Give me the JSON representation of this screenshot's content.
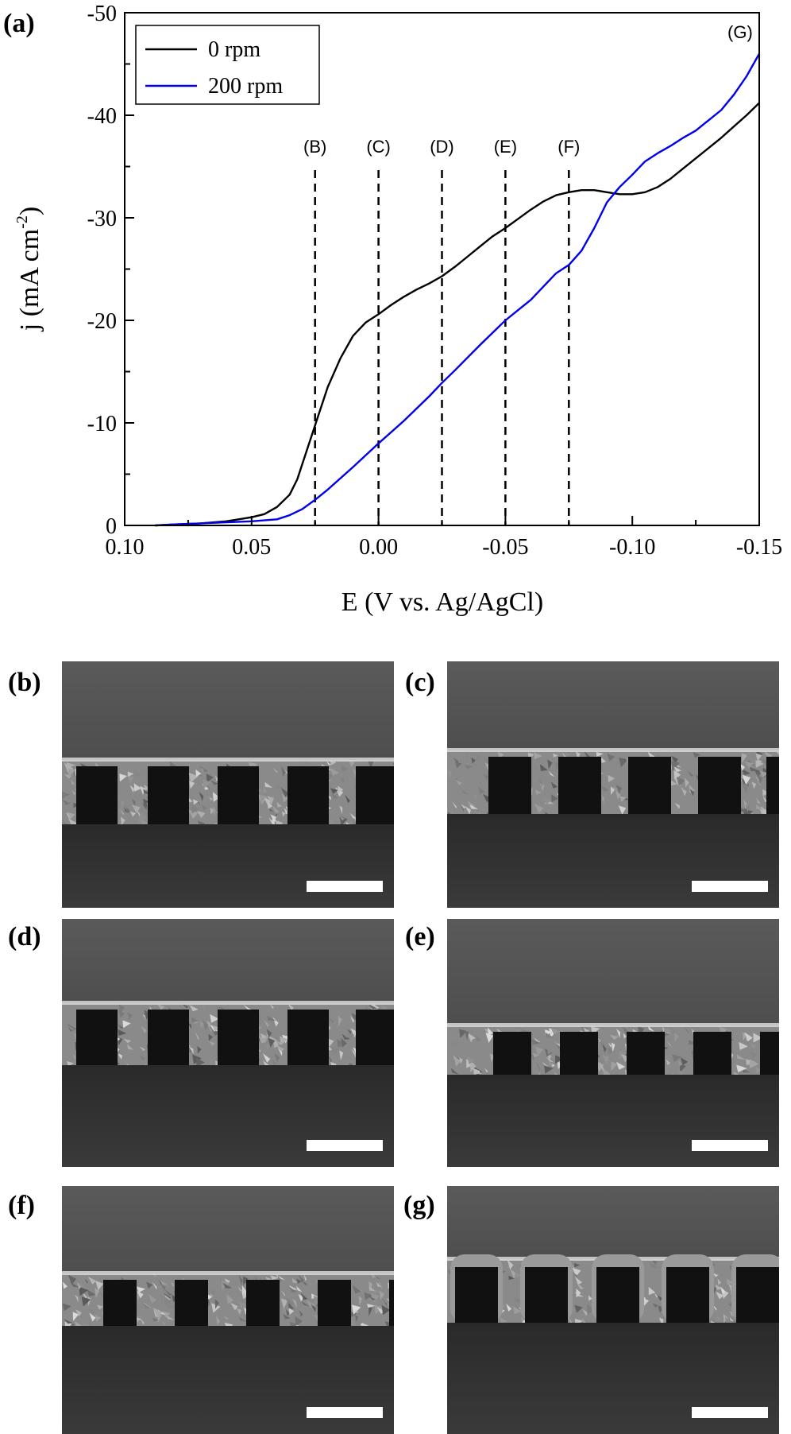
{
  "chart_data": {
    "type": "line",
    "panel_label": "(a)",
    "xlabel": "E (V vs. Ag/AgCl)",
    "ylabel_main": "j (mA cm",
    "ylabel_sup": "-2",
    "ylabel_close": ")",
    "xlim": [
      0.1,
      -0.15
    ],
    "ylim": [
      0,
      -50
    ],
    "x_ticks": [
      0.1,
      0.05,
      0.0,
      -0.05,
      -0.1,
      -0.15
    ],
    "x_tick_labels": [
      "0.10",
      "0.05",
      "0.00",
      "-0.05",
      "-0.10",
      "-0.15"
    ],
    "y_ticks": [
      0,
      -10,
      -20,
      -30,
      -40,
      -50
    ],
    "y_tick_labels": [
      "0",
      "-10",
      "-20",
      "-30",
      "-40",
      "-50"
    ],
    "legend_position": "top-left",
    "series": [
      {
        "name": "0 rpm",
        "color": "#000000",
        "x": [
          0.088,
          0.08,
          0.07,
          0.06,
          0.05,
          0.045,
          0.04,
          0.035,
          0.032,
          0.03,
          0.028,
          0.026,
          0.024,
          0.022,
          0.02,
          0.015,
          0.01,
          0.005,
          0.0,
          -0.005,
          -0.01,
          -0.015,
          -0.02,
          -0.025,
          -0.03,
          -0.035,
          -0.04,
          -0.045,
          -0.05,
          -0.055,
          -0.06,
          -0.065,
          -0.07,
          -0.075,
          -0.08,
          -0.085,
          -0.09,
          -0.095,
          -0.1,
          -0.105,
          -0.11,
          -0.115,
          -0.12,
          -0.125,
          -0.13,
          -0.135,
          -0.14,
          -0.145,
          -0.15
        ],
        "y": [
          0,
          -0.1,
          -0.2,
          -0.4,
          -0.8,
          -1.1,
          -1.8,
          -3.0,
          -4.5,
          -6.0,
          -7.5,
          -9.0,
          -10.5,
          -12.0,
          -13.5,
          -16.3,
          -18.5,
          -19.8,
          -20.6,
          -21.5,
          -22.3,
          -23.0,
          -23.6,
          -24.3,
          -25.2,
          -26.2,
          -27.2,
          -28.2,
          -29.0,
          -29.9,
          -30.8,
          -31.6,
          -32.2,
          -32.5,
          -32.7,
          -32.7,
          -32.5,
          -32.3,
          -32.3,
          -32.5,
          -33.0,
          -33.8,
          -34.8,
          -35.8,
          -36.8,
          -37.8,
          -38.9,
          -40.0,
          -41.2
        ]
      },
      {
        "name": "200 rpm",
        "color": "#0000ee",
        "x": [
          0.088,
          0.08,
          0.07,
          0.06,
          0.05,
          0.04,
          0.035,
          0.03,
          0.025,
          0.02,
          0.01,
          0.0,
          -0.01,
          -0.02,
          -0.025,
          -0.03,
          -0.04,
          -0.045,
          -0.05,
          -0.055,
          -0.06,
          -0.065,
          -0.07,
          -0.075,
          -0.08,
          -0.085,
          -0.09,
          -0.095,
          -0.1,
          -0.105,
          -0.11,
          -0.115,
          -0.12,
          -0.125,
          -0.13,
          -0.135,
          -0.14,
          -0.145,
          -0.15
        ],
        "y": [
          0,
          -0.1,
          -0.2,
          -0.3,
          -0.4,
          -0.6,
          -1.0,
          -1.6,
          -2.5,
          -3.5,
          -5.7,
          -8.0,
          -10.2,
          -12.6,
          -13.9,
          -15.1,
          -17.6,
          -18.8,
          -20.0,
          -21.0,
          -22.0,
          -23.3,
          -24.6,
          -25.4,
          -26.8,
          -29.0,
          -31.5,
          -33.0,
          -34.2,
          -35.5,
          -36.3,
          -37.0,
          -37.8,
          -38.5,
          -39.5,
          -40.5,
          -42.0,
          -43.8,
          -46.0
        ]
      }
    ],
    "markers": [
      {
        "label": "(B)",
        "x": 0.025
      },
      {
        "label": "(C)",
        "x": 0.0
      },
      {
        "label": "(D)",
        "x": -0.025
      },
      {
        "label": "(E)",
        "x": -0.05
      },
      {
        "label": "(F)",
        "x": -0.075
      }
    ],
    "corner_label": "(G)"
  },
  "sem_panels": [
    {
      "label": "(b)"
    },
    {
      "label": "(c)"
    },
    {
      "label": "(d)"
    },
    {
      "label": "(e)"
    },
    {
      "label": "(f)"
    },
    {
      "label": "(g)"
    }
  ]
}
